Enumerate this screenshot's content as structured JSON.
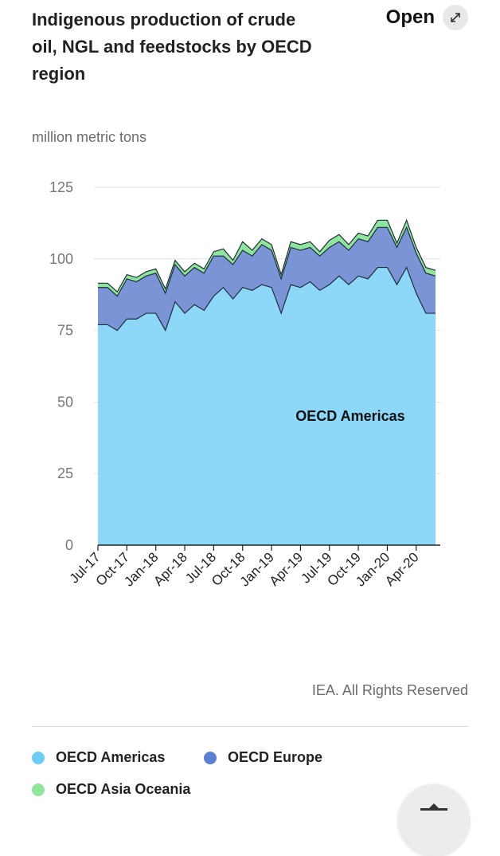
{
  "header": {
    "title": "Indigenous production of crude oil, NGL and feedstocks by OECD region",
    "open_label": "Open",
    "open_icon": "expand-icon"
  },
  "unit_label": "million metric tons",
  "credit": "IEA. All Rights Reserved",
  "colors": {
    "americas": "#8dd8f8",
    "europe": "#7a94d6",
    "asia_oceania": "#8fe59c",
    "outline": "#1f2d3d",
    "grid": "#e3e3e3"
  },
  "legend": [
    {
      "label": "OECD Americas",
      "color": "#6dcdf6"
    },
    {
      "label": "OECD Europe",
      "color": "#5b7fd1"
    },
    {
      "label": "OECD Asia Oceania",
      "color": "#8fe59c"
    }
  ],
  "chart_data": {
    "type": "area",
    "stacked": true,
    "title": "Indigenous production of crude oil, NGL and feedstocks by OECD region",
    "ylabel": "million metric tons",
    "ylim": [
      0,
      125
    ],
    "yticks": [
      0,
      25,
      50,
      75,
      100,
      125
    ],
    "tick_labels": [
      "Jul-17",
      "Oct-17",
      "Jan-18",
      "Apr-18",
      "Jul-18",
      "Oct-18",
      "Jan-19",
      "Apr-19",
      "Jul-19",
      "Oct-19",
      "Jan-20",
      "Apr-20"
    ],
    "x": [
      "Jul-17",
      "Aug-17",
      "Sep-17",
      "Oct-17",
      "Nov-17",
      "Dec-17",
      "Jan-18",
      "Feb-18",
      "Mar-18",
      "Apr-18",
      "May-18",
      "Jun-18",
      "Jul-18",
      "Aug-18",
      "Sep-18",
      "Oct-18",
      "Nov-18",
      "Dec-18",
      "Jan-19",
      "Feb-19",
      "Mar-19",
      "Apr-19",
      "May-19",
      "Jun-19",
      "Jul-19",
      "Aug-19",
      "Sep-19",
      "Oct-19",
      "Nov-19",
      "Dec-19",
      "Jan-20",
      "Feb-20",
      "Mar-20",
      "Apr-20",
      "May-20",
      "Jun-20"
    ],
    "annotation": "OECD Americas",
    "series": [
      {
        "name": "OECD Americas",
        "values": [
          77,
          77,
          75,
          79,
          79,
          81,
          81,
          75,
          85,
          81,
          84,
          82,
          87,
          90,
          86,
          90,
          89,
          91,
          90,
          81,
          91,
          90,
          92,
          89,
          91,
          94,
          91,
          94,
          93,
          97,
          97,
          91,
          97,
          88,
          81,
          81
        ]
      },
      {
        "name": "OECD Europe",
        "values": [
          13,
          13,
          12,
          14,
          13,
          13,
          14,
          13,
          13,
          13,
          13,
          13,
          14,
          11,
          12,
          13,
          12,
          14,
          13,
          12,
          13,
          13,
          12,
          12,
          13,
          12,
          12,
          13,
          13,
          14,
          14,
          13,
          14,
          14,
          14,
          13
        ]
      },
      {
        "name": "OECD Asia Oceania",
        "values": [
          1.5,
          1.5,
          1.5,
          1.5,
          1.5,
          1.5,
          1.5,
          1.5,
          1.5,
          1.5,
          1.5,
          1.5,
          1.5,
          2.5,
          1.5,
          3,
          2,
          2,
          2,
          1.5,
          2,
          2,
          2,
          1.5,
          2.5,
          2.5,
          2,
          2,
          2,
          2.5,
          2.5,
          1.5,
          2.5,
          2,
          2,
          2
        ]
      }
    ]
  }
}
